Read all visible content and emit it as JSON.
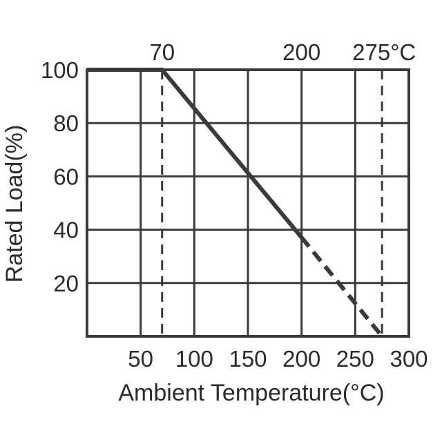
{
  "chart_data": {
    "type": "line",
    "title": "",
    "xlabel": "Ambient Temperature(°C)",
    "ylabel": "Rated Load(%)",
    "xlim": [
      0,
      300
    ],
    "ylim": [
      0,
      100
    ],
    "grid": true,
    "x_ticks": [
      {
        "value": 50,
        "label": "50"
      },
      {
        "value": 100,
        "label": "100"
      },
      {
        "value": 150,
        "label": "150"
      },
      {
        "value": 200,
        "label": "200"
      },
      {
        "value": 250,
        "label": "250"
      },
      {
        "value": 300,
        "label": "300"
      }
    ],
    "y_ticks": [
      {
        "value": 20,
        "label": "20"
      },
      {
        "value": 40,
        "label": "40"
      },
      {
        "value": 60,
        "label": "60"
      },
      {
        "value": 80,
        "label": "80"
      },
      {
        "value": 100,
        "label": "100"
      }
    ],
    "top_annotations": [
      {
        "value": 70,
        "label": "70"
      },
      {
        "value": 200,
        "label": "200"
      },
      {
        "value": 275,
        "label": "275°C"
      }
    ],
    "reference_lines_x": [
      70,
      275
    ],
    "series": [
      {
        "style": "solid",
        "x": [
          0,
          70,
          200
        ],
        "y": [
          100,
          100,
          37.1
        ]
      },
      {
        "style": "dashed",
        "x": [
          200,
          275
        ],
        "y": [
          37.1,
          0
        ]
      }
    ],
    "colors": {
      "line": "#3a3a3a",
      "text": "#2b2b2b"
    }
  }
}
